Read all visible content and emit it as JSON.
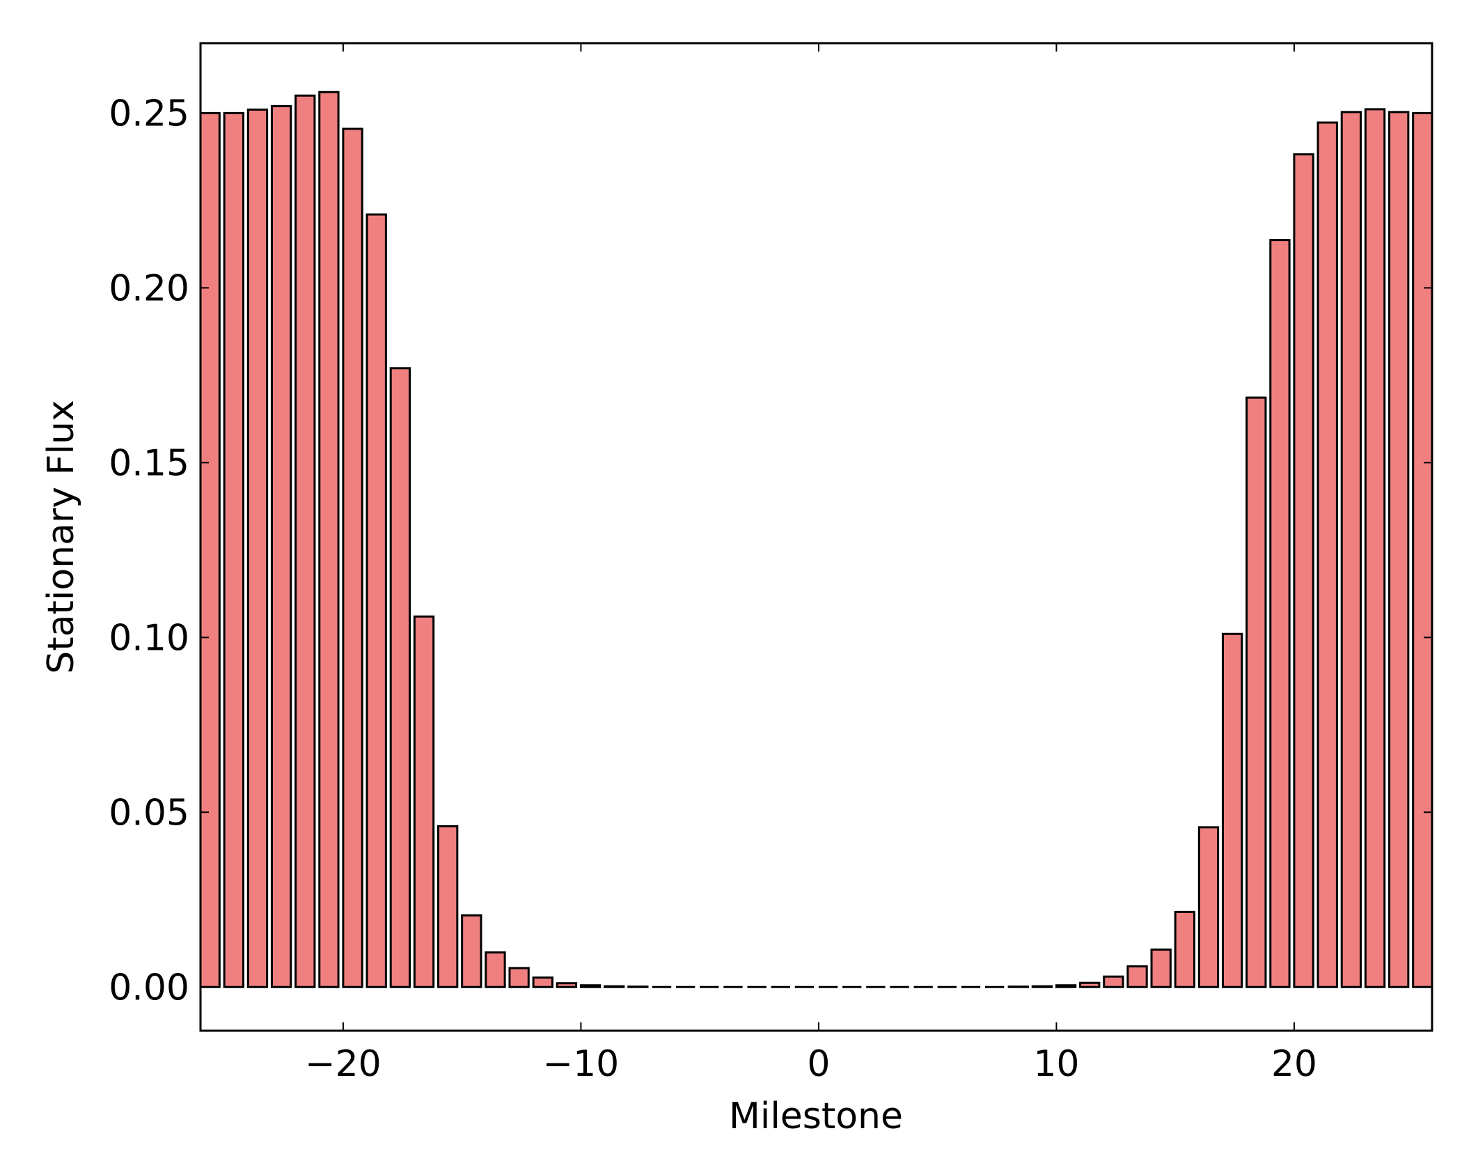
{
  "chart_data": {
    "type": "bar",
    "x_label": "Milestone",
    "y_label": "Stationary Flux",
    "x": [
      -26,
      -25,
      -24,
      -23,
      -22,
      -21,
      -20,
      -19,
      -18,
      -17,
      -16,
      -15,
      -14,
      -13,
      -12,
      -11,
      -10,
      -9,
      -8,
      -7,
      -6,
      -5,
      -4,
      -3,
      -2,
      -1,
      0,
      1,
      2,
      3,
      4,
      5,
      6,
      7,
      8,
      9,
      10,
      11,
      12,
      13,
      14,
      15,
      16,
      17,
      18,
      19,
      20,
      21,
      22,
      23,
      24,
      25
    ],
    "values": [
      0.25,
      0.25,
      0.251,
      0.252,
      0.255,
      0.256,
      0.2455,
      0.221,
      0.177,
      0.106,
      0.046,
      0.0205,
      0.0099,
      0.0054,
      0.0027,
      0.0011,
      0.0005,
      0.0002,
      0.0001,
      0,
      0,
      0,
      0,
      0,
      0,
      0,
      0,
      0,
      0,
      0,
      0,
      0,
      0,
      0,
      0.0001,
      0.0002,
      0.0005,
      0.0012,
      0.003,
      0.0059,
      0.0107,
      0.0215,
      0.0457,
      0.101,
      0.1686,
      0.2137,
      0.2382,
      0.2473,
      0.2503,
      0.2511,
      0.2503,
      0.25
    ],
    "bar_width": 0.8,
    "color": "#f08080",
    "xlim": [
      -26,
      25.8
    ],
    "ylim": [
      -0.0125,
      0.27
    ],
    "xticks": [
      {
        "value": -20,
        "label": "−20"
      },
      {
        "value": -10,
        "label": "−10"
      },
      0,
      10,
      20
    ],
    "yticks": [
      {
        "value": 0,
        "label": "0.00"
      },
      0.05,
      {
        "value": 0.1,
        "label": "0.10"
      },
      0.15,
      {
        "value": 0.2,
        "label": "0.20"
      },
      0.25
    ]
  }
}
